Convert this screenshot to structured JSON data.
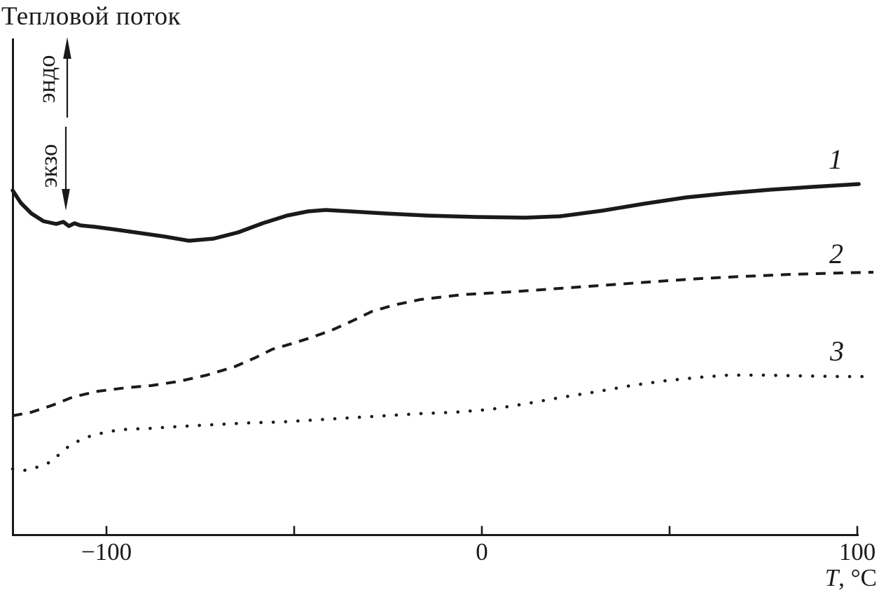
{
  "figure": {
    "title": "Тепловой поток",
    "endo_label": "эндо",
    "exo_label": "экзо",
    "x_axis_title_var": "T",
    "x_axis_title_rest": ", °C"
  },
  "chart_data": {
    "type": "line",
    "title": "Тепловой поток",
    "xlabel": "T, °C",
    "ylabel": "Тепловой поток (стрелка вверх: эндо, вниз: экзо)",
    "x_range": [
      -125,
      105
    ],
    "grid": false,
    "legend_position": "inline-right",
    "y_units": "arbitrary heat-flow units (v = height above x-axis, px)",
    "x_ticks": [
      {
        "t": -100,
        "label": "−100"
      },
      {
        "t": -50,
        "label": ""
      },
      {
        "t": 0,
        "label": "0"
      },
      {
        "t": 50,
        "label": ""
      },
      {
        "t": 100,
        "label": "100"
      }
    ],
    "series": [
      {
        "name": "1",
        "style": "solid",
        "points": [
          [
            -125,
            492
          ],
          [
            -122.8,
            474
          ],
          [
            -120,
            459
          ],
          [
            -116.8,
            448
          ],
          [
            -113.4,
            444
          ],
          [
            -111.5,
            447
          ],
          [
            -110,
            441
          ],
          [
            -108.5,
            445
          ],
          [
            -107,
            442
          ],
          [
            -103.2,
            440
          ],
          [
            -97.6,
            436
          ],
          [
            -91,
            431
          ],
          [
            -84.5,
            426
          ],
          [
            -78,
            420
          ],
          [
            -71.5,
            423
          ],
          [
            -64.9,
            432
          ],
          [
            -58.4,
            445
          ],
          [
            -51.9,
            456
          ],
          [
            -46.3,
            462
          ],
          [
            -41.6,
            464
          ],
          [
            -35.1,
            462
          ],
          [
            -25.7,
            459
          ],
          [
            -14.6,
            456
          ],
          [
            -1.5,
            454
          ],
          [
            11.6,
            453
          ],
          [
            20.9,
            455
          ],
          [
            32.1,
            463
          ],
          [
            43.3,
            473
          ],
          [
            54.5,
            482
          ],
          [
            65.7,
            488
          ],
          [
            76.9,
            493
          ],
          [
            88.1,
            497
          ],
          [
            100.4,
            501
          ]
        ]
      },
      {
        "name": "2",
        "style": "dashed",
        "points": [
          [
            -125,
            170
          ],
          [
            -120,
            175
          ],
          [
            -114.4,
            185
          ],
          [
            -108.8,
            197
          ],
          [
            -102.2,
            205
          ],
          [
            -94.8,
            210
          ],
          [
            -88.2,
            213
          ],
          [
            -80.8,
            219
          ],
          [
            -73.3,
            228
          ],
          [
            -65.9,
            240
          ],
          [
            -60.3,
            253
          ],
          [
            -55.8,
            265
          ],
          [
            -50.6,
            273
          ],
          [
            -45.3,
            282
          ],
          [
            -40.1,
            292
          ],
          [
            -34.7,
            305
          ],
          [
            -29.3,
            319
          ],
          [
            -23.5,
            328
          ],
          [
            -16.4,
            336
          ],
          [
            -5.2,
            343
          ],
          [
            7.8,
            347
          ],
          [
            20.9,
            352
          ],
          [
            34,
            357
          ],
          [
            47,
            362
          ],
          [
            58.2,
            366
          ],
          [
            69.4,
            369
          ],
          [
            82.5,
            372
          ],
          [
            95.5,
            374
          ],
          [
            104.3,
            375
          ]
        ]
      },
      {
        "name": "3",
        "style": "dotted",
        "points": [
          [
            -125,
            94
          ],
          [
            -121.8,
            92
          ],
          [
            -118.1,
            97
          ],
          [
            -115.3,
            103
          ],
          [
            -112.5,
            115
          ],
          [
            -109.7,
            128
          ],
          [
            -106.3,
            137
          ],
          [
            -103.2,
            143
          ],
          [
            -99.4,
            147
          ],
          [
            -96.6,
            150
          ],
          [
            -92.9,
            151
          ],
          [
            -88.2,
            152
          ],
          [
            -82.6,
            154
          ],
          [
            -76.1,
            156
          ],
          [
            -68.7,
            158
          ],
          [
            -61.2,
            160
          ],
          [
            -53.7,
            161
          ],
          [
            -44.4,
            164
          ],
          [
            -35.1,
            167
          ],
          [
            -25.7,
            170
          ],
          [
            -16.4,
            173
          ],
          [
            -7.1,
            175
          ],
          [
            2.2,
            179
          ],
          [
            11.6,
            187
          ],
          [
            20.9,
            196
          ],
          [
            30.2,
            204
          ],
          [
            39.6,
            213
          ],
          [
            48.9,
            220
          ],
          [
            58.2,
            225
          ],
          [
            65.7,
            228
          ],
          [
            75,
            228
          ],
          [
            84.3,
            227
          ],
          [
            95.5,
            226
          ],
          [
            102,
            226
          ]
        ]
      }
    ]
  }
}
